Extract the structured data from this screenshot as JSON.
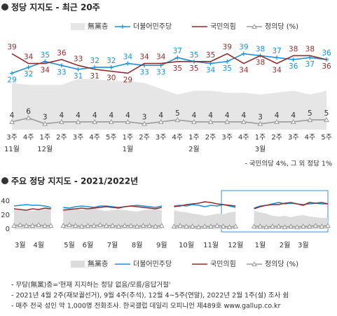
{
  "chart_data": [
    {
      "type": "line",
      "title": "정당 지지도 - 최근 20주",
      "categories": [
        "3주",
        "4주",
        "1주",
        "2주",
        "3주",
        "4주",
        "5주",
        "1주",
        "2주",
        "3주",
        "4주",
        "1주",
        "2주",
        "3주",
        "4주",
        "1주",
        "2주",
        "3주",
        "4주",
        "5주"
      ],
      "category_groups": [
        "11월",
        null,
        "12월",
        null,
        null,
        null,
        null,
        "1월",
        null,
        null,
        null,
        "2월",
        null,
        null,
        null,
        "3월",
        null,
        null,
        null,
        null
      ],
      "ylim": [
        0,
        45
      ],
      "data_labels": true,
      "series": [
        {
          "name": "無黨층",
          "kind": "area",
          "color": "#e6e6e6",
          "values": [
            24,
            23,
            23,
            23,
            26,
            26,
            25,
            25,
            24,
            21,
            18,
            20,
            20,
            19,
            19,
            18,
            19,
            20,
            18,
            20
          ]
        },
        {
          "name": "더불어민주당",
          "kind": "line",
          "marker": "plus",
          "color": "#1e90d8",
          "values": [
            29,
            32,
            35,
            33,
            31,
            32,
            32,
            34,
            33,
            33,
            37,
            35,
            34,
            35,
            39,
            38,
            37,
            36,
            37,
            36
          ]
        },
        {
          "name": "국민의힘",
          "kind": "line",
          "color": "#8e2f2f",
          "values": [
            39,
            34,
            34,
            36,
            33,
            31,
            30,
            29,
            34,
            34,
            35,
            35,
            35,
            39,
            34,
            38,
            34,
            38,
            38,
            36
          ]
        },
        {
          "name": "정의당 (%)",
          "kind": "line",
          "marker": "triangle",
          "color": "#9a9a9a",
          "values": [
            4,
            6,
            3,
            4,
            4,
            4,
            4,
            4,
            3,
            4,
            5,
            4,
            4,
            4,
            4,
            3,
            4,
            4,
            5,
            5
          ]
        }
      ],
      "note": "- 국민의당 4%, 그 외 정당 1%"
    },
    {
      "type": "line",
      "title": "주요 정당 지지도 - 2021/2022년",
      "categories": [
        null,
        "3월",
        null,
        null,
        "4월",
        null,
        null,
        null,
        null,
        "5월",
        null,
        null,
        "6월",
        null,
        null,
        null,
        "7월",
        null,
        null,
        null,
        "8월",
        null,
        null,
        null,
        "9월",
        null,
        null,
        null,
        "10월",
        null,
        null,
        null,
        "11월",
        null,
        null,
        null,
        "12월",
        null,
        null,
        null,
        "1월",
        null,
        null,
        null,
        "2월",
        null,
        null,
        "3월",
        null,
        null,
        null,
        null
      ],
      "ylim": [
        0,
        50
      ],
      "yticks": [
        0,
        20,
        40
      ],
      "series": [
        {
          "name": "無黨층",
          "kind": "area",
          "color": "#dcdcdc",
          "values": [
            28,
            27,
            27,
            26,
            28,
            29,
            30,
            null,
            30,
            31,
            29,
            28,
            29,
            30,
            27,
            26,
            27,
            28,
            27,
            26,
            25,
            27,
            28,
            29,
            27,
            null,
            27,
            25,
            24,
            22,
            21,
            19,
            20,
            22,
            21,
            24,
            25,
            null,
            null,
            26,
            24,
            22,
            19,
            18,
            19,
            17,
            19,
            20,
            18,
            17,
            16,
            16
          ]
        },
        {
          "name": "더불어민주당",
          "kind": "line",
          "color": "#1e90d8",
          "values": [
            33,
            34,
            35,
            34,
            34,
            33,
            31,
            null,
            31,
            30,
            32,
            33,
            32,
            31,
            33,
            33,
            32,
            31,
            32,
            33,
            34,
            33,
            32,
            31,
            33,
            null,
            33,
            34,
            33,
            35,
            34,
            32,
            34,
            33,
            35,
            33,
            31,
            null,
            null,
            30,
            33,
            34,
            36,
            38,
            36,
            37,
            36,
            35,
            36,
            37,
            36,
            36
          ]
        },
        {
          "name": "국민의힘",
          "kind": "line",
          "color": "#8e2f2f",
          "values": [
            29,
            28,
            27,
            29,
            28,
            30,
            29,
            null,
            27,
            28,
            29,
            30,
            29,
            30,
            31,
            32,
            31,
            30,
            32,
            33,
            32,
            31,
            30,
            29,
            31,
            null,
            32,
            33,
            35,
            36,
            37,
            39,
            38,
            36,
            35,
            34,
            33,
            null,
            null,
            29,
            32,
            34,
            35,
            35,
            37,
            38,
            36,
            34,
            38,
            37,
            38,
            36
          ]
        },
        {
          "name": "정의당 (%)",
          "kind": "line",
          "marker": "triangle",
          "color": "#9a9a9a",
          "values": [
            5,
            6,
            5,
            5,
            6,
            5,
            5,
            null,
            5,
            6,
            5,
            4,
            5,
            5,
            6,
            5,
            5,
            4,
            5,
            5,
            4,
            5,
            5,
            4,
            5,
            null,
            4,
            5,
            4,
            4,
            3,
            4,
            4,
            5,
            4,
            3,
            4,
            null,
            null,
            4,
            4,
            3,
            4,
            4,
            3,
            4,
            3,
            4,
            4,
            5,
            4,
            5
          ]
        }
      ]
    }
  ],
  "notes": [
    "- 무당(無黨)층='현재 지지하는 정당 없음/모름/응답거절'",
    "- 2021년 4월 2주(재보궐선거), 9월 4주(추석), 12월 4~5주(연말), 2022년 2월 1주(설) 조사 쉼",
    "- 매주 전국 성인 약 1,000명 전화조사. 한국갤럽 데일리 오피니언 제489호 www.gallup.co.kr"
  ]
}
